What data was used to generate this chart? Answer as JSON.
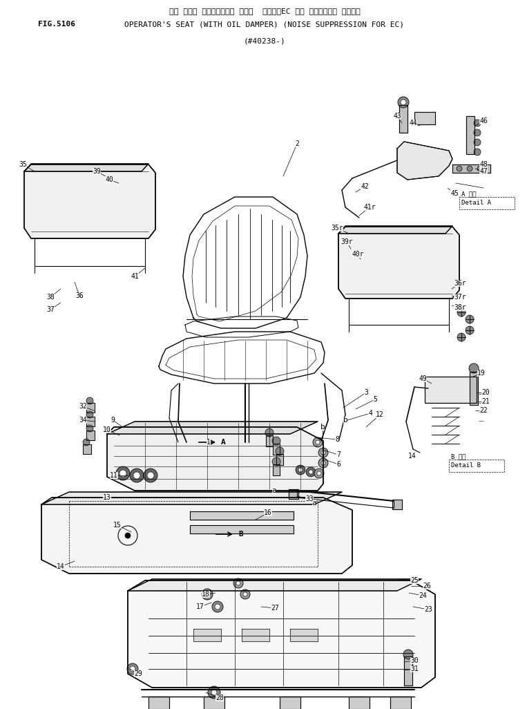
{
  "title_jp": "オペ レータ シート（オイル ダンパ  ツキ）（EC ムケ チイソウオン ショウ）",
  "title_en": "OPERATOR'S SEAT (WITH OIL DAMPER) (NOISE SUPPRESSION FOR EC)",
  "fig_num": "FIG.5106",
  "subtitle": "(#40238-)",
  "bg_color": "#ffffff",
  "line_color": "#000000",
  "text_color": "#000000"
}
